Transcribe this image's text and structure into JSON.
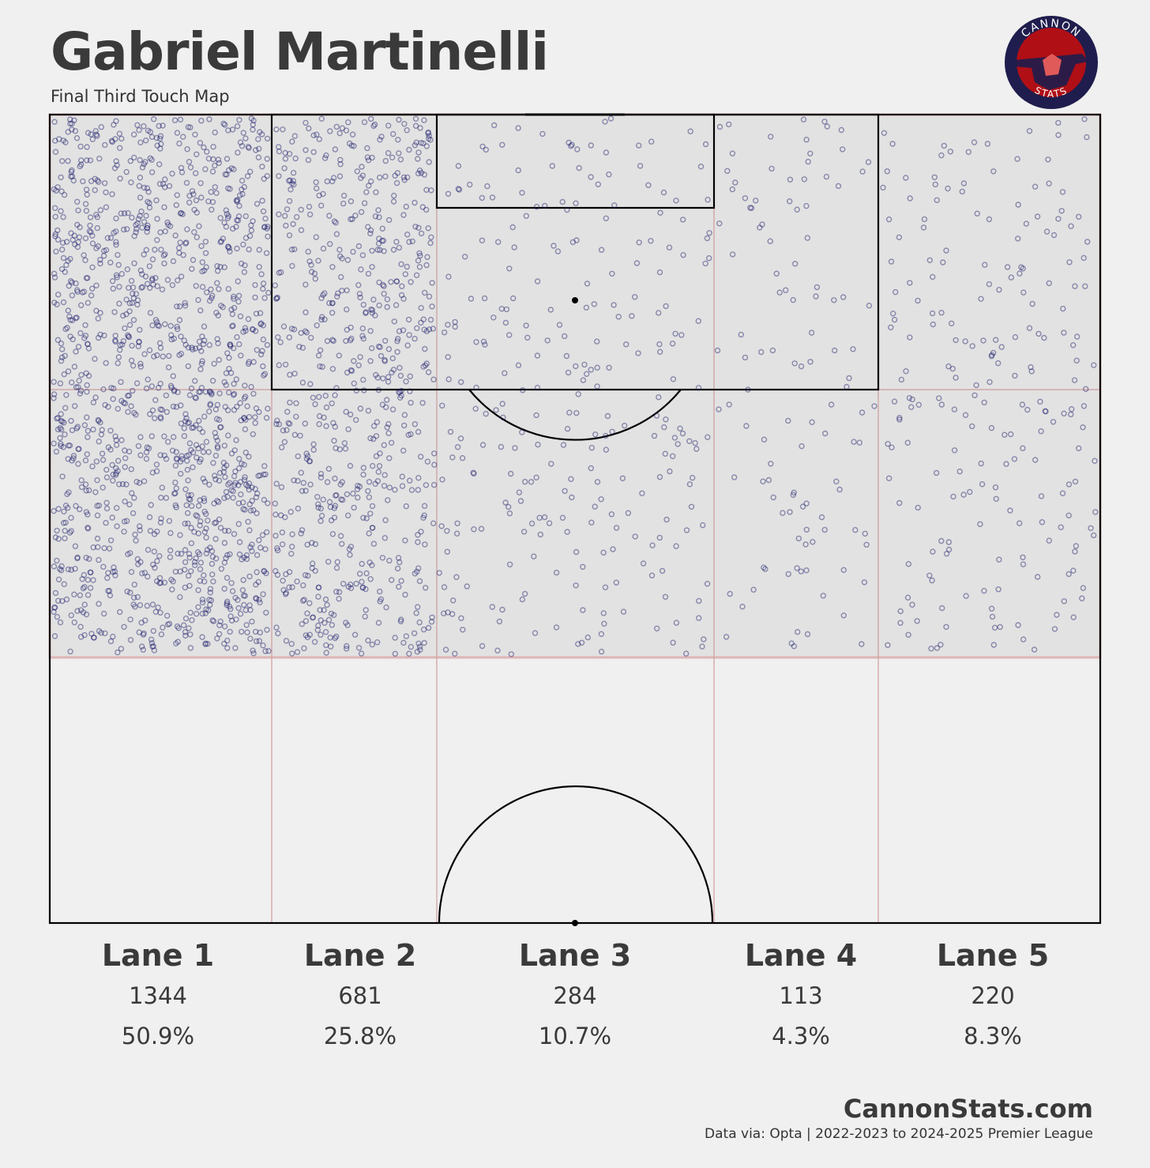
{
  "header": {
    "title": "Gabriel Martinelli",
    "subtitle": "Final Third Touch Map"
  },
  "logo": {
    "top_text": "CANNON",
    "bottom_text": "STATS",
    "colors": {
      "ring": "#1f1d4d",
      "inner": "#b00f16",
      "accent": "#e05a5a"
    }
  },
  "footer": {
    "site": "CannonStats.com",
    "source": "Data via: Opta | 2022-2023 to 2024-2025 Premier League"
  },
  "chart_data": {
    "type": "scatter",
    "description": "touch density by lane",
    "lanes": [
      {
        "name": "Lane 1",
        "count": "1344",
        "pct": "50.9%",
        "count_value": 1344
      },
      {
        "name": "Lane 2",
        "count": "681",
        "pct": "25.8%",
        "count_value": 681
      },
      {
        "name": "Lane 3",
        "count": "284",
        "pct": "10.7%",
        "count_value": 284
      },
      {
        "name": "Lane 4",
        "count": "113",
        "pct": "4.3%",
        "count_value": 113
      },
      {
        "name": "Lane 5",
        "count": "220",
        "pct": "8.3%",
        "count_value": 220
      }
    ],
    "colors": {
      "point": "#1a1a6b",
      "final_third_fill": "#e2e2e2",
      "lane_line": "#c98a8a",
      "pitch_line": "#000000",
      "background": "#f0f0f0"
    }
  }
}
